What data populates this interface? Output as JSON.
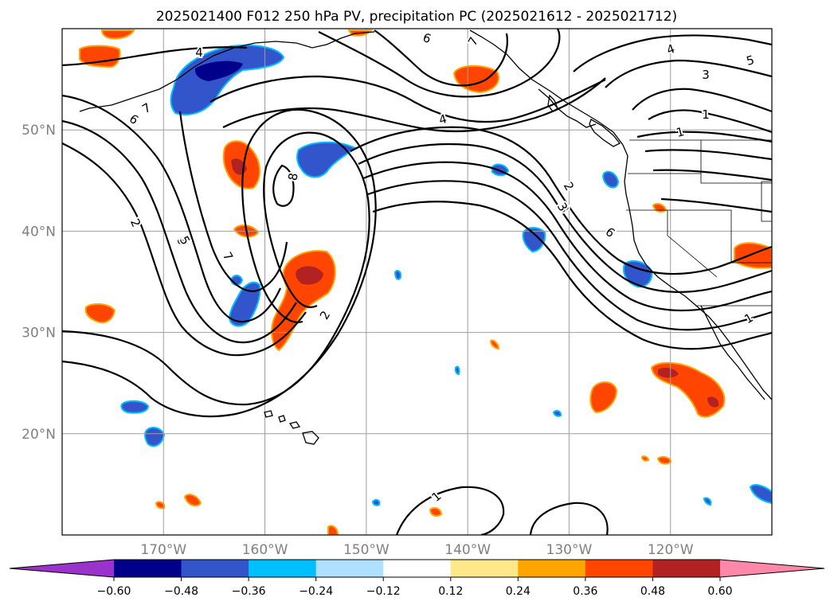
{
  "figure": {
    "title": "2025021400 F012 250 hPa PV, precipitation PC (2025021612 - 2025021712)",
    "projection": "PlateCarree",
    "extent": {
      "lon_min": -180,
      "lon_max": -110,
      "lat_min": 10,
      "lat_max": 60
    },
    "lat_labels": [
      "50°N",
      "40°N",
      "30°N",
      "20°N"
    ],
    "lon_labels": [
      "170°W",
      "160°W",
      "150°W",
      "140°W",
      "130°W",
      "120°W"
    ],
    "axis_label_color": "#808080",
    "gridlines": true,
    "coastlines": true,
    "contour_variable": "250 hPa PV",
    "contour_labels": [
      "4",
      "6",
      "7",
      "8",
      "7",
      "6",
      "5",
      "2",
      "4",
      "3",
      "2",
      "1",
      "6",
      "4",
      "3",
      "2",
      "2",
      "7",
      "5",
      "3",
      "6",
      "1",
      "1",
      "1",
      "5"
    ],
    "shaded_variable": "precipitation PC"
  },
  "colorbar": {
    "orientation": "horizontal",
    "extend": "both",
    "ticks": [
      "−0.60",
      "−0.48",
      "−0.36",
      "−0.24",
      "−0.12",
      "0.12",
      "0.24",
      "0.36",
      "0.48",
      "0.60"
    ],
    "colors": [
      "#9933cc",
      "#00008b",
      "#3355cc",
      "#00bfff",
      "#b0e0ff",
      "#ffffff",
      "#ffe88a",
      "#ffa500",
      "#ff4500",
      "#b22222",
      "#ff88aa"
    ]
  }
}
